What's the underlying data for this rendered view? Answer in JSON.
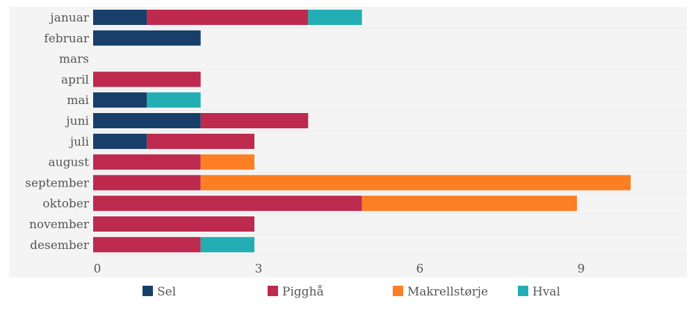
{
  "chart_data": {
    "type": "bar",
    "orientation": "horizontal",
    "stacked": true,
    "categories": [
      "januar",
      "februar",
      "mars",
      "april",
      "mai",
      "juni",
      "juli",
      "august",
      "september",
      "oktober",
      "november",
      "desember"
    ],
    "series": [
      {
        "name": "Sel",
        "color": "#173f6a",
        "values": [
          1,
          2,
          0,
          0,
          1,
          2,
          1,
          0,
          0,
          0,
          0,
          0
        ]
      },
      {
        "name": "Pigghå",
        "color": "#bd2a4e",
        "values": [
          3,
          0,
          0,
          2,
          0,
          2,
          2,
          2,
          2,
          5,
          3,
          2
        ]
      },
      {
        "name": "Makrellstørje",
        "color": "#fd7e23",
        "values": [
          0,
          0,
          0,
          0,
          0,
          0,
          0,
          1,
          8,
          4,
          0,
          0
        ]
      },
      {
        "name": "Hval",
        "color": "#23aeb3",
        "values": [
          1,
          0,
          0,
          0,
          1,
          0,
          0,
          0,
          0,
          0,
          0,
          1
        ]
      }
    ],
    "xticks": [
      0,
      3,
      6,
      9
    ],
    "xlim": [
      0,
      11.05
    ],
    "grid": true,
    "legend": "bottom",
    "background": "#f4f4f4"
  }
}
